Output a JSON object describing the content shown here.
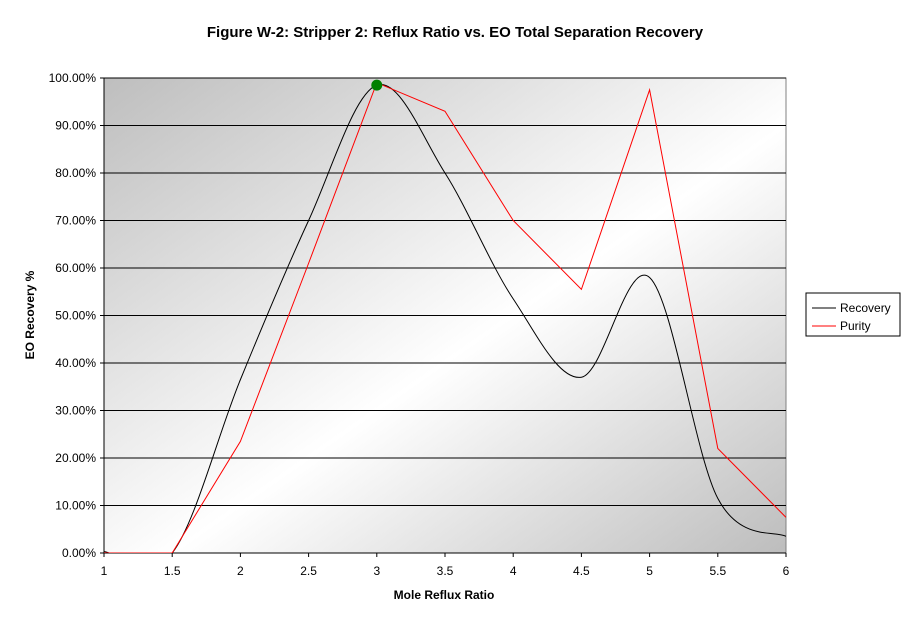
{
  "chart_data": {
    "type": "line",
    "title": "Figure W-2: Stripper 2:  Reflux Ratio vs. EO Total Separation Recovery",
    "xlabel": "Mole Reflux Ratio",
    "ylabel": "EO Recovery %",
    "xlim": [
      1,
      6
    ],
    "ylim": [
      0,
      100
    ],
    "x_ticks": [
      "1",
      "1.5",
      "2",
      "2.5",
      "3",
      "3.5",
      "4",
      "4.5",
      "5",
      "5.5",
      "6"
    ],
    "y_ticks": [
      "0.00%",
      "10.00%",
      "20.00%",
      "30.00%",
      "40.00%",
      "50.00%",
      "60.00%",
      "70.00%",
      "80.00%",
      "90.00%",
      "100.00%"
    ],
    "grid": "horizontal major gridlines",
    "legend_position": "right",
    "series": [
      {
        "name": "Recovery",
        "color": "#000000",
        "smooth": true,
        "x": [
          1,
          1.5,
          2,
          2.5,
          3,
          3.5,
          4,
          4.5,
          5,
          5.5,
          6
        ],
        "y": [
          0.3,
          0.0,
          36.5,
          70.0,
          98.5,
          80.0,
          53.5,
          37.0,
          58.0,
          11.5,
          3.5
        ]
      },
      {
        "name": "Purity",
        "color": "#ff0000",
        "smooth": false,
        "x": [
          1,
          1.5,
          2,
          2.5,
          3,
          3.5,
          4,
          4.5,
          5,
          5.5,
          6
        ],
        "y": [
          0.0,
          0.0,
          23.5,
          61.0,
          99.0,
          93.0,
          70.0,
          55.5,
          97.5,
          22.0,
          7.5
        ]
      }
    ],
    "highlight_point": {
      "x": 3,
      "y": 98.5,
      "color": "#008000"
    }
  }
}
